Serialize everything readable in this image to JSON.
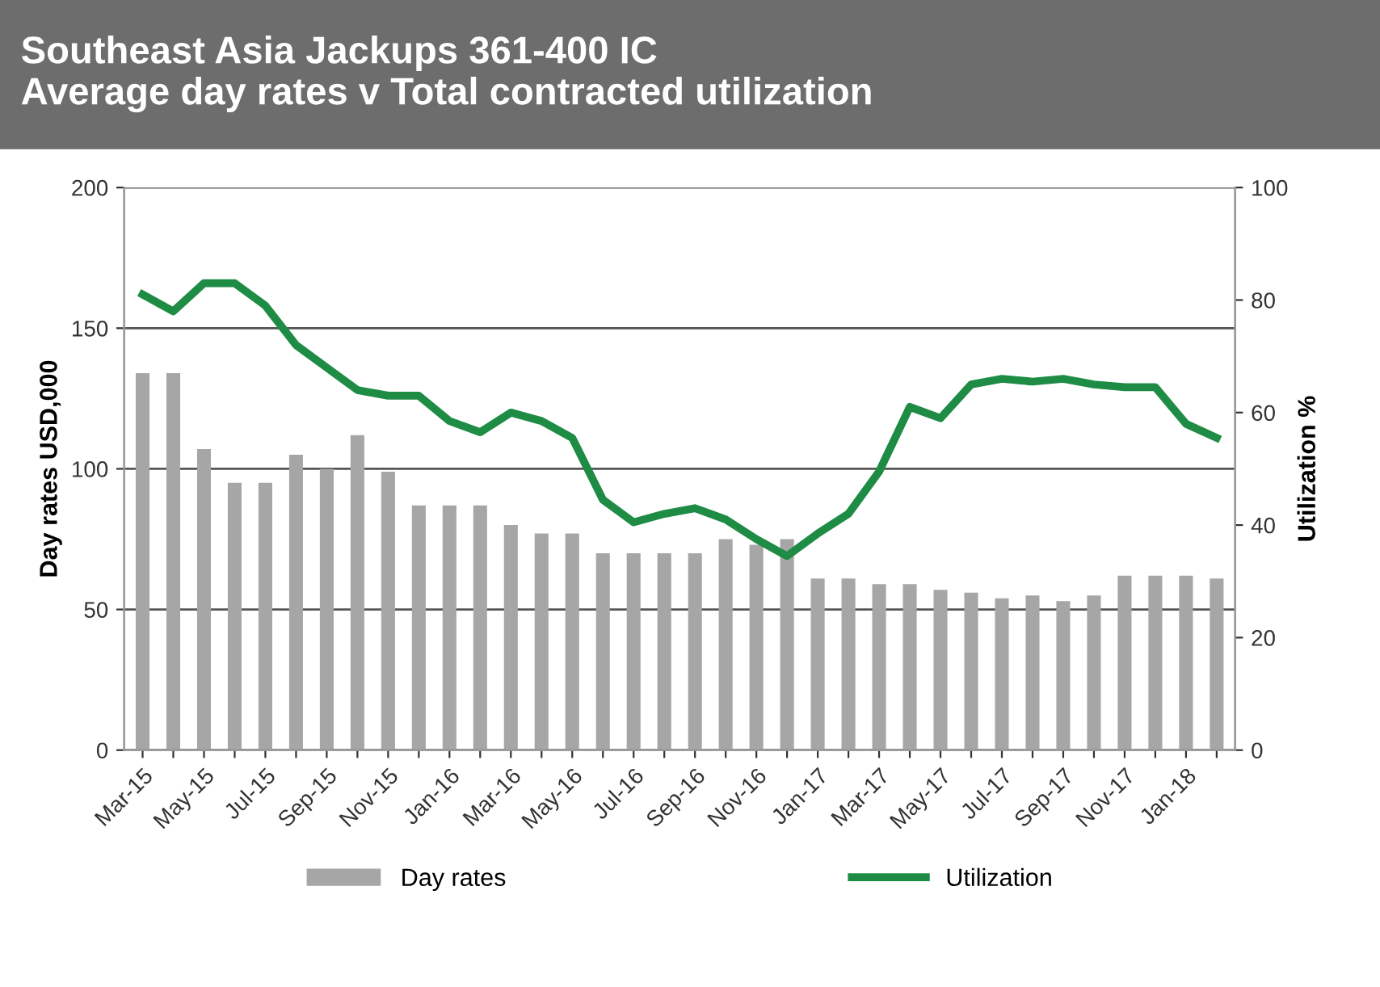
{
  "chart_data": {
    "type": "bar",
    "title": "Southeast Asia Jackups 361-400 IC\nAverage day rates v Total contracted utilization",
    "categories": [
      "Mar-15",
      null,
      "May-15",
      null,
      "Jul-15",
      null,
      "Sep-15",
      null,
      "Nov-15",
      null,
      "Jan-16",
      null,
      "Mar-16",
      null,
      "May-16",
      null,
      "Jul-16",
      null,
      "Sep-16",
      null,
      "Nov-16",
      null,
      "Jan-17",
      null,
      "Mar-17",
      null,
      "May-17",
      null,
      "Jul-17",
      null,
      "Sep-17",
      null,
      "Nov-17",
      null,
      "Jan-18",
      null
    ],
    "series": [
      {
        "name": "Day rates",
        "color": "#a6a6a6",
        "values": [
          134,
          134,
          107,
          95,
          95,
          105,
          100,
          112,
          99,
          87,
          87,
          87,
          80,
          77,
          77,
          70,
          70,
          70,
          70,
          75,
          73,
          75,
          61,
          61,
          59,
          59,
          57,
          56,
          54,
          55,
          53,
          55,
          62,
          62,
          62,
          61
        ]
      },
      {
        "name": "Utilization",
        "type": "line",
        "axis": "y2",
        "color": "#1e8c45",
        "values": [
          81,
          78,
          83,
          83,
          79,
          72,
          68,
          64,
          63,
          63,
          58.5,
          56.5,
          60,
          58.5,
          55.5,
          44.5,
          40.5,
          42,
          43,
          41,
          37.5,
          34.5,
          38.5,
          42,
          49.5,
          61,
          59,
          65,
          66,
          65.5,
          66,
          65,
          64.5,
          64.5,
          58,
          55.5
        ]
      }
    ],
    "ylabel": "Day rates USD,000",
    "y2label": "Utilization %",
    "ylim": [
      0,
      200
    ],
    "yticks": [
      0,
      50,
      100,
      150,
      200
    ],
    "y2lim": [
      0,
      100
    ],
    "y2ticks": [
      0,
      20,
      40,
      60,
      80,
      100
    ],
    "grid": "y",
    "legend": "bottom",
    "marker": "none",
    "line_style": "solid"
  }
}
